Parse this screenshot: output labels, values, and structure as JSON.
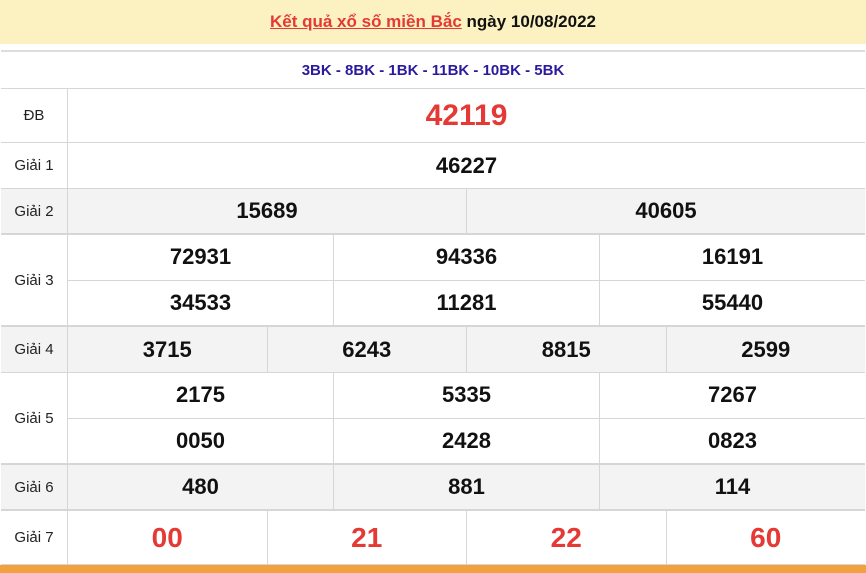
{
  "header": {
    "title_link": "Kết quả xổ số miền Bắc",
    "date_text": "ngày 10/08/2022"
  },
  "codes": "3BK - 8BK - 1BK - 11BK - 10BK - 5BK",
  "prizes": [
    {
      "label": "ĐB",
      "numbers": [
        [
          "42119"
        ]
      ]
    },
    {
      "label": "Giải 1",
      "numbers": [
        [
          "46227"
        ]
      ]
    },
    {
      "label": "Giải 2",
      "numbers": [
        [
          "15689",
          "40605"
        ]
      ]
    },
    {
      "label": "Giải 3",
      "numbers": [
        [
          "72931",
          "94336",
          "16191"
        ],
        [
          "34533",
          "11281",
          "55440"
        ]
      ]
    },
    {
      "label": "Giải 4",
      "numbers": [
        [
          "3715",
          "6243",
          "8815",
          "2599"
        ]
      ]
    },
    {
      "label": "Giải 5",
      "numbers": [
        [
          "2175",
          "5335",
          "7267"
        ],
        [
          "0050",
          "2428",
          "0823"
        ]
      ]
    },
    {
      "label": "Giải 6",
      "numbers": [
        [
          "480",
          "881",
          "114"
        ]
      ]
    },
    {
      "label": "Giải 7",
      "numbers": [
        [
          "00",
          "21",
          "22",
          "60"
        ]
      ]
    }
  ],
  "colors": {
    "header_bg": "#fcf1c0",
    "accent_red": "#e53935",
    "code_blue": "#2a1a9e",
    "bottom_bar": "#f3a03f"
  }
}
